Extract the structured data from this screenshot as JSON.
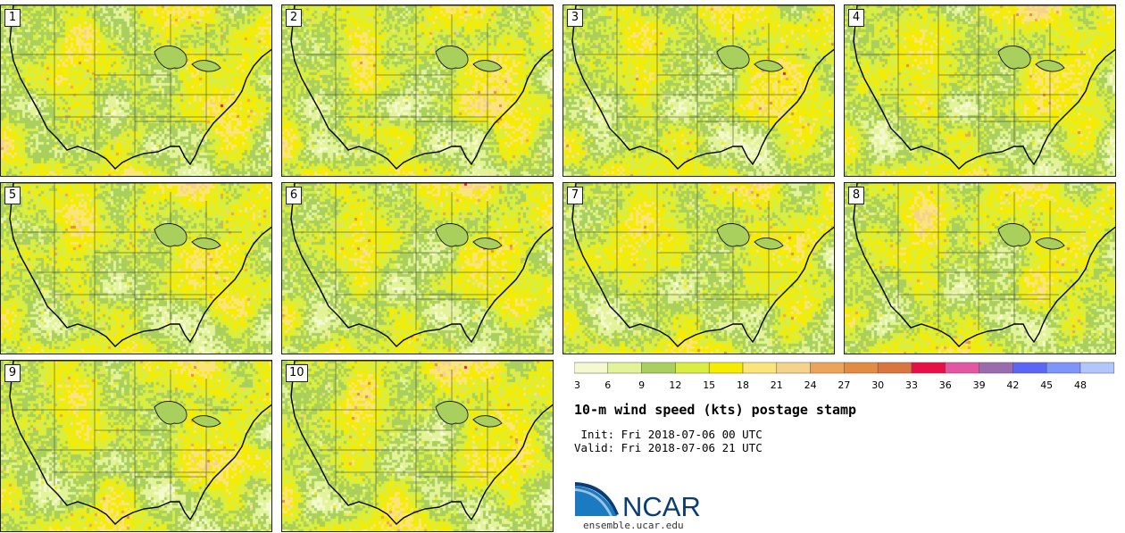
{
  "title": "10-m wind speed (kts) postage stamp",
  "init": " Init: Fri 2018-07-06 00 UTC",
  "valid": "Valid: Fri 2018-07-06 21 UTC",
  "logo_text": "NCAR",
  "url": "ensemble.ucar.edu",
  "members": [
    "1",
    "2",
    "3",
    "4",
    "5",
    "6",
    "7",
    "8",
    "9",
    "10"
  ],
  "legend": {
    "ticks": [
      "3",
      "6",
      "9",
      "12",
      "15",
      "18",
      "21",
      "24",
      "27",
      "30",
      "33",
      "36",
      "39",
      "42",
      "45",
      "48"
    ],
    "colors": [
      "#f5f9cf",
      "#e3f39a",
      "#a9cf5c",
      "#d8ee42",
      "#f6ec00",
      "#fbe57a",
      "#f6d38a",
      "#eba45a",
      "#e28c42",
      "#d9753f",
      "#e80f45",
      "#e256a2",
      "#9a6cad",
      "#5c66f4",
      "#7f95f9",
      "#b2c6fb"
    ]
  }
}
